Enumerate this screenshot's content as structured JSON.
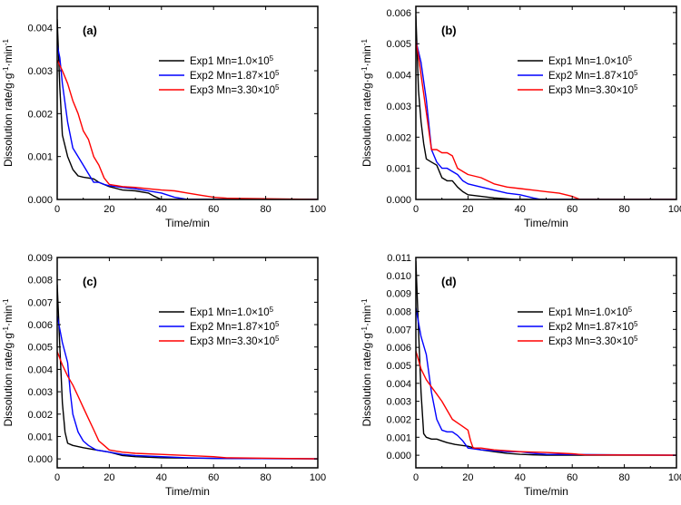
{
  "chart_data": [
    {
      "type": "line",
      "panel_label": "(a)",
      "xlabel": "Time/min",
      "ylabel": "Dissolution rate/g·g",
      "ylabel_exp": "-1",
      "ylabel_mid": "·min",
      "xlim": [
        0,
        100
      ],
      "ylim": [
        0,
        0.0045
      ],
      "xticks": [
        "0",
        "20",
        "40",
        "60",
        "80",
        "100"
      ],
      "yticks": [
        "0.000",
        "0.001",
        "0.002",
        "0.003",
        "0.004"
      ],
      "legend_position": "upper-right",
      "series": [
        {
          "name": "Exp1 Mn=1.0×10",
          "sup": "5",
          "color": "#000000",
          "x": [
            0,
            1,
            2,
            3,
            4,
            6,
            8,
            10,
            12,
            14,
            16,
            20,
            25,
            30,
            35,
            37,
            40,
            100
          ],
          "y": [
            0.0042,
            0.0026,
            0.0015,
            0.00125,
            0.001,
            0.0007,
            0.00055,
            0.00052,
            0.0005,
            0.00048,
            0.0004,
            0.0003,
            0.00022,
            0.0002,
            0.00015,
            8e-05,
            0,
            0
          ]
        },
        {
          "name": "Exp2 Mn=1.87×10",
          "sup": "5",
          "color": "#0000ff",
          "x": [
            0,
            1,
            2,
            4,
            6,
            8,
            10,
            12,
            14,
            16,
            18,
            20,
            25,
            30,
            40,
            45,
            50,
            100
          ],
          "y": [
            0.0036,
            0.0033,
            0.0027,
            0.0018,
            0.0012,
            0.001,
            0.0008,
            0.0006,
            0.0004,
            0.0004,
            0.00035,
            0.00032,
            0.00028,
            0.00025,
            0.00015,
            5e-05,
            0,
            0
          ]
        },
        {
          "name": "Exp3 Mn=3.30×10",
          "sup": "5",
          "color": "#ff0000",
          "x": [
            0,
            2,
            4,
            6,
            8,
            10,
            12,
            14,
            16,
            18,
            20,
            25,
            30,
            35,
            40,
            45,
            50,
            55,
            60,
            65,
            100
          ],
          "y": [
            0.00325,
            0.003,
            0.0027,
            0.0023,
            0.002,
            0.0016,
            0.0014,
            0.001,
            0.0008,
            0.0005,
            0.00035,
            0.0003,
            0.00028,
            0.00025,
            0.00022,
            0.0002,
            0.00015,
            0.0001,
            5e-05,
            3e-05,
            0
          ]
        }
      ]
    },
    {
      "type": "line",
      "panel_label": "(b)",
      "xlabel": "Time/min",
      "ylabel": "Dissolution rate/g·g",
      "ylabel_exp": "-1",
      "ylabel_mid": "·min",
      "xlim": [
        0,
        100
      ],
      "ylim": [
        0,
        0.0062
      ],
      "xticks": [
        "0",
        "20",
        "40",
        "60",
        "80",
        "100"
      ],
      "yticks": [
        "0.000",
        "0.001",
        "0.002",
        "0.003",
        "0.004",
        "0.005",
        "0.006"
      ],
      "legend_position": "upper-right",
      "series": [
        {
          "name": "Exp1 Mn=1.0×10",
          "sup": "5",
          "color": "#000000",
          "x": [
            0,
            1,
            2,
            3,
            4,
            6,
            8,
            10,
            12,
            14,
            16,
            18,
            20,
            25,
            30,
            35,
            38,
            100
          ],
          "y": [
            0.0059,
            0.0035,
            0.0025,
            0.0018,
            0.0013,
            0.0012,
            0.0011,
            0.0007,
            0.0006,
            0.0006,
            0.0004,
            0.00025,
            0.00015,
            0.0001,
            5e-05,
            2e-05,
            0,
            0
          ]
        },
        {
          "name": "Exp2 Mn=1.87×10",
          "sup": "5",
          "color": "#0000ff",
          "x": [
            0,
            2,
            4,
            6,
            8,
            10,
            12,
            14,
            16,
            18,
            20,
            25,
            30,
            35,
            40,
            45,
            48,
            100
          ],
          "y": [
            0.0051,
            0.0044,
            0.0032,
            0.0016,
            0.0012,
            0.001,
            0.001,
            0.0009,
            0.0008,
            0.0006,
            0.0005,
            0.0004,
            0.0003,
            0.0002,
            0.00015,
            5e-05,
            0,
            0
          ]
        },
        {
          "name": "Exp3 Mn=3.30×10",
          "sup": "5",
          "color": "#ff0000",
          "x": [
            0,
            1,
            2,
            4,
            6,
            8,
            10,
            12,
            14,
            16,
            18,
            20,
            25,
            30,
            35,
            40,
            45,
            50,
            55,
            60,
            63,
            100
          ],
          "y": [
            0.0051,
            0.0046,
            0.004,
            0.0028,
            0.0016,
            0.0016,
            0.0015,
            0.0015,
            0.0014,
            0.001,
            0.0009,
            0.0008,
            0.0007,
            0.0005,
            0.0004,
            0.00035,
            0.0003,
            0.00025,
            0.0002,
            0.0001,
            0,
            0
          ]
        }
      ]
    },
    {
      "type": "line",
      "panel_label": "(c)",
      "xlabel": "Time/min",
      "ylabel": "Dissolution rate/g·g",
      "ylabel_exp": "-1",
      "ylabel_mid": "·min",
      "xlim": [
        0,
        100
      ],
      "ylim": [
        -0.0004,
        0.009
      ],
      "xticks": [
        "0",
        "20",
        "40",
        "60",
        "80",
        "100"
      ],
      "yticks": [
        "0.000",
        "0.001",
        "0.002",
        "0.003",
        "0.004",
        "0.005",
        "0.006",
        "0.007",
        "0.008",
        "0.009"
      ],
      "legend_position": "upper-right",
      "series": [
        {
          "name": "Exp1 Mn=1.0×10",
          "sup": "5",
          "color": "#000000",
          "x": [
            0,
            1,
            2,
            3,
            4,
            6,
            10,
            15,
            20,
            25,
            30,
            40,
            60,
            100
          ],
          "y": [
            0.0078,
            0.005,
            0.0025,
            0.0012,
            0.0007,
            0.0006,
            0.0005,
            0.0004,
            0.0003,
            0.00015,
            0.0001,
            5e-05,
            2e-05,
            0
          ]
        },
        {
          "name": "Exp2 Mn=1.87×10",
          "sup": "5",
          "color": "#0000ff",
          "x": [
            0,
            2,
            4,
            5,
            6,
            8,
            10,
            12,
            15,
            20,
            25,
            30,
            40,
            50,
            60,
            100
          ],
          "y": [
            0.0064,
            0.0052,
            0.0043,
            0.003,
            0.002,
            0.0012,
            0.0008,
            0.0006,
            0.0004,
            0.0003,
            0.0002,
            0.00015,
            0.0001,
            5e-05,
            2e-05,
            0
          ]
        },
        {
          "name": "Exp3 Mn=3.30×10",
          "sup": "5",
          "color": "#ff0000",
          "x": [
            0,
            2,
            4,
            6,
            8,
            10,
            12,
            14,
            16,
            18,
            20,
            25,
            30,
            40,
            50,
            60,
            65,
            100
          ],
          "y": [
            0.0048,
            0.0042,
            0.0037,
            0.0033,
            0.0028,
            0.0023,
            0.0018,
            0.0013,
            0.0008,
            0.0006,
            0.0004,
            0.0003,
            0.00025,
            0.0002,
            0.00015,
            0.0001,
            5e-05,
            0
          ]
        }
      ]
    },
    {
      "type": "line",
      "panel_label": "(d)",
      "xlabel": "Time/min",
      "ylabel": "Dissolution rate/g·g",
      "ylabel_exp": "-1",
      "ylabel_mid": "·min",
      "xlim": [
        0,
        100
      ],
      "ylim": [
        -0.0007,
        0.011
      ],
      "xticks": [
        "0",
        "20",
        "40",
        "60",
        "80",
        "100"
      ],
      "yticks": [
        "0.000",
        "0.001",
        "0.002",
        "0.003",
        "0.004",
        "0.005",
        "0.006",
        "0.007",
        "0.008",
        "0.009",
        "0.010",
        "0.011"
      ],
      "legend_position": "upper-right",
      "series": [
        {
          "name": "Exp1 Mn=1.0×10",
          "sup": "5",
          "color": "#000000",
          "x": [
            0,
            1,
            2,
            3,
            4,
            6,
            8,
            10,
            12,
            15,
            20,
            25,
            30,
            35,
            40,
            45,
            50,
            100
          ],
          "y": [
            0.0108,
            0.007,
            0.0035,
            0.0012,
            0.001,
            0.0009,
            0.0009,
            0.0008,
            0.0007,
            0.0006,
            0.0005,
            0.0003,
            0.0002,
            0.0001,
            5e-05,
            2e-05,
            0,
            0
          ]
        },
        {
          "name": "Exp2 Mn=1.87×10",
          "sup": "5",
          "color": "#0000ff",
          "x": [
            0,
            2,
            4,
            6,
            8,
            10,
            12,
            14,
            16,
            18,
            20,
            25,
            30,
            35,
            40,
            45,
            50,
            100
          ],
          "y": [
            0.0082,
            0.0066,
            0.0056,
            0.0035,
            0.002,
            0.0014,
            0.0013,
            0.0013,
            0.0011,
            0.0008,
            0.0004,
            0.0003,
            0.00025,
            0.0002,
            0.0002,
            0.0001,
            5e-05,
            0
          ]
        },
        {
          "name": "Exp3 Mn=3.30×10",
          "sup": "5",
          "color": "#ff0000",
          "x": [
            0,
            2,
            4,
            6,
            8,
            10,
            12,
            14,
            16,
            18,
            20,
            21,
            22,
            25,
            30,
            40,
            50,
            60,
            65,
            100
          ],
          "y": [
            0.0058,
            0.0048,
            0.0042,
            0.0038,
            0.0034,
            0.003,
            0.0025,
            0.002,
            0.0018,
            0.0016,
            0.0014,
            0.0008,
            0.0004,
            0.0004,
            0.0003,
            0.0002,
            0.00015,
            8e-05,
            2e-05,
            0
          ]
        }
      ]
    }
  ]
}
